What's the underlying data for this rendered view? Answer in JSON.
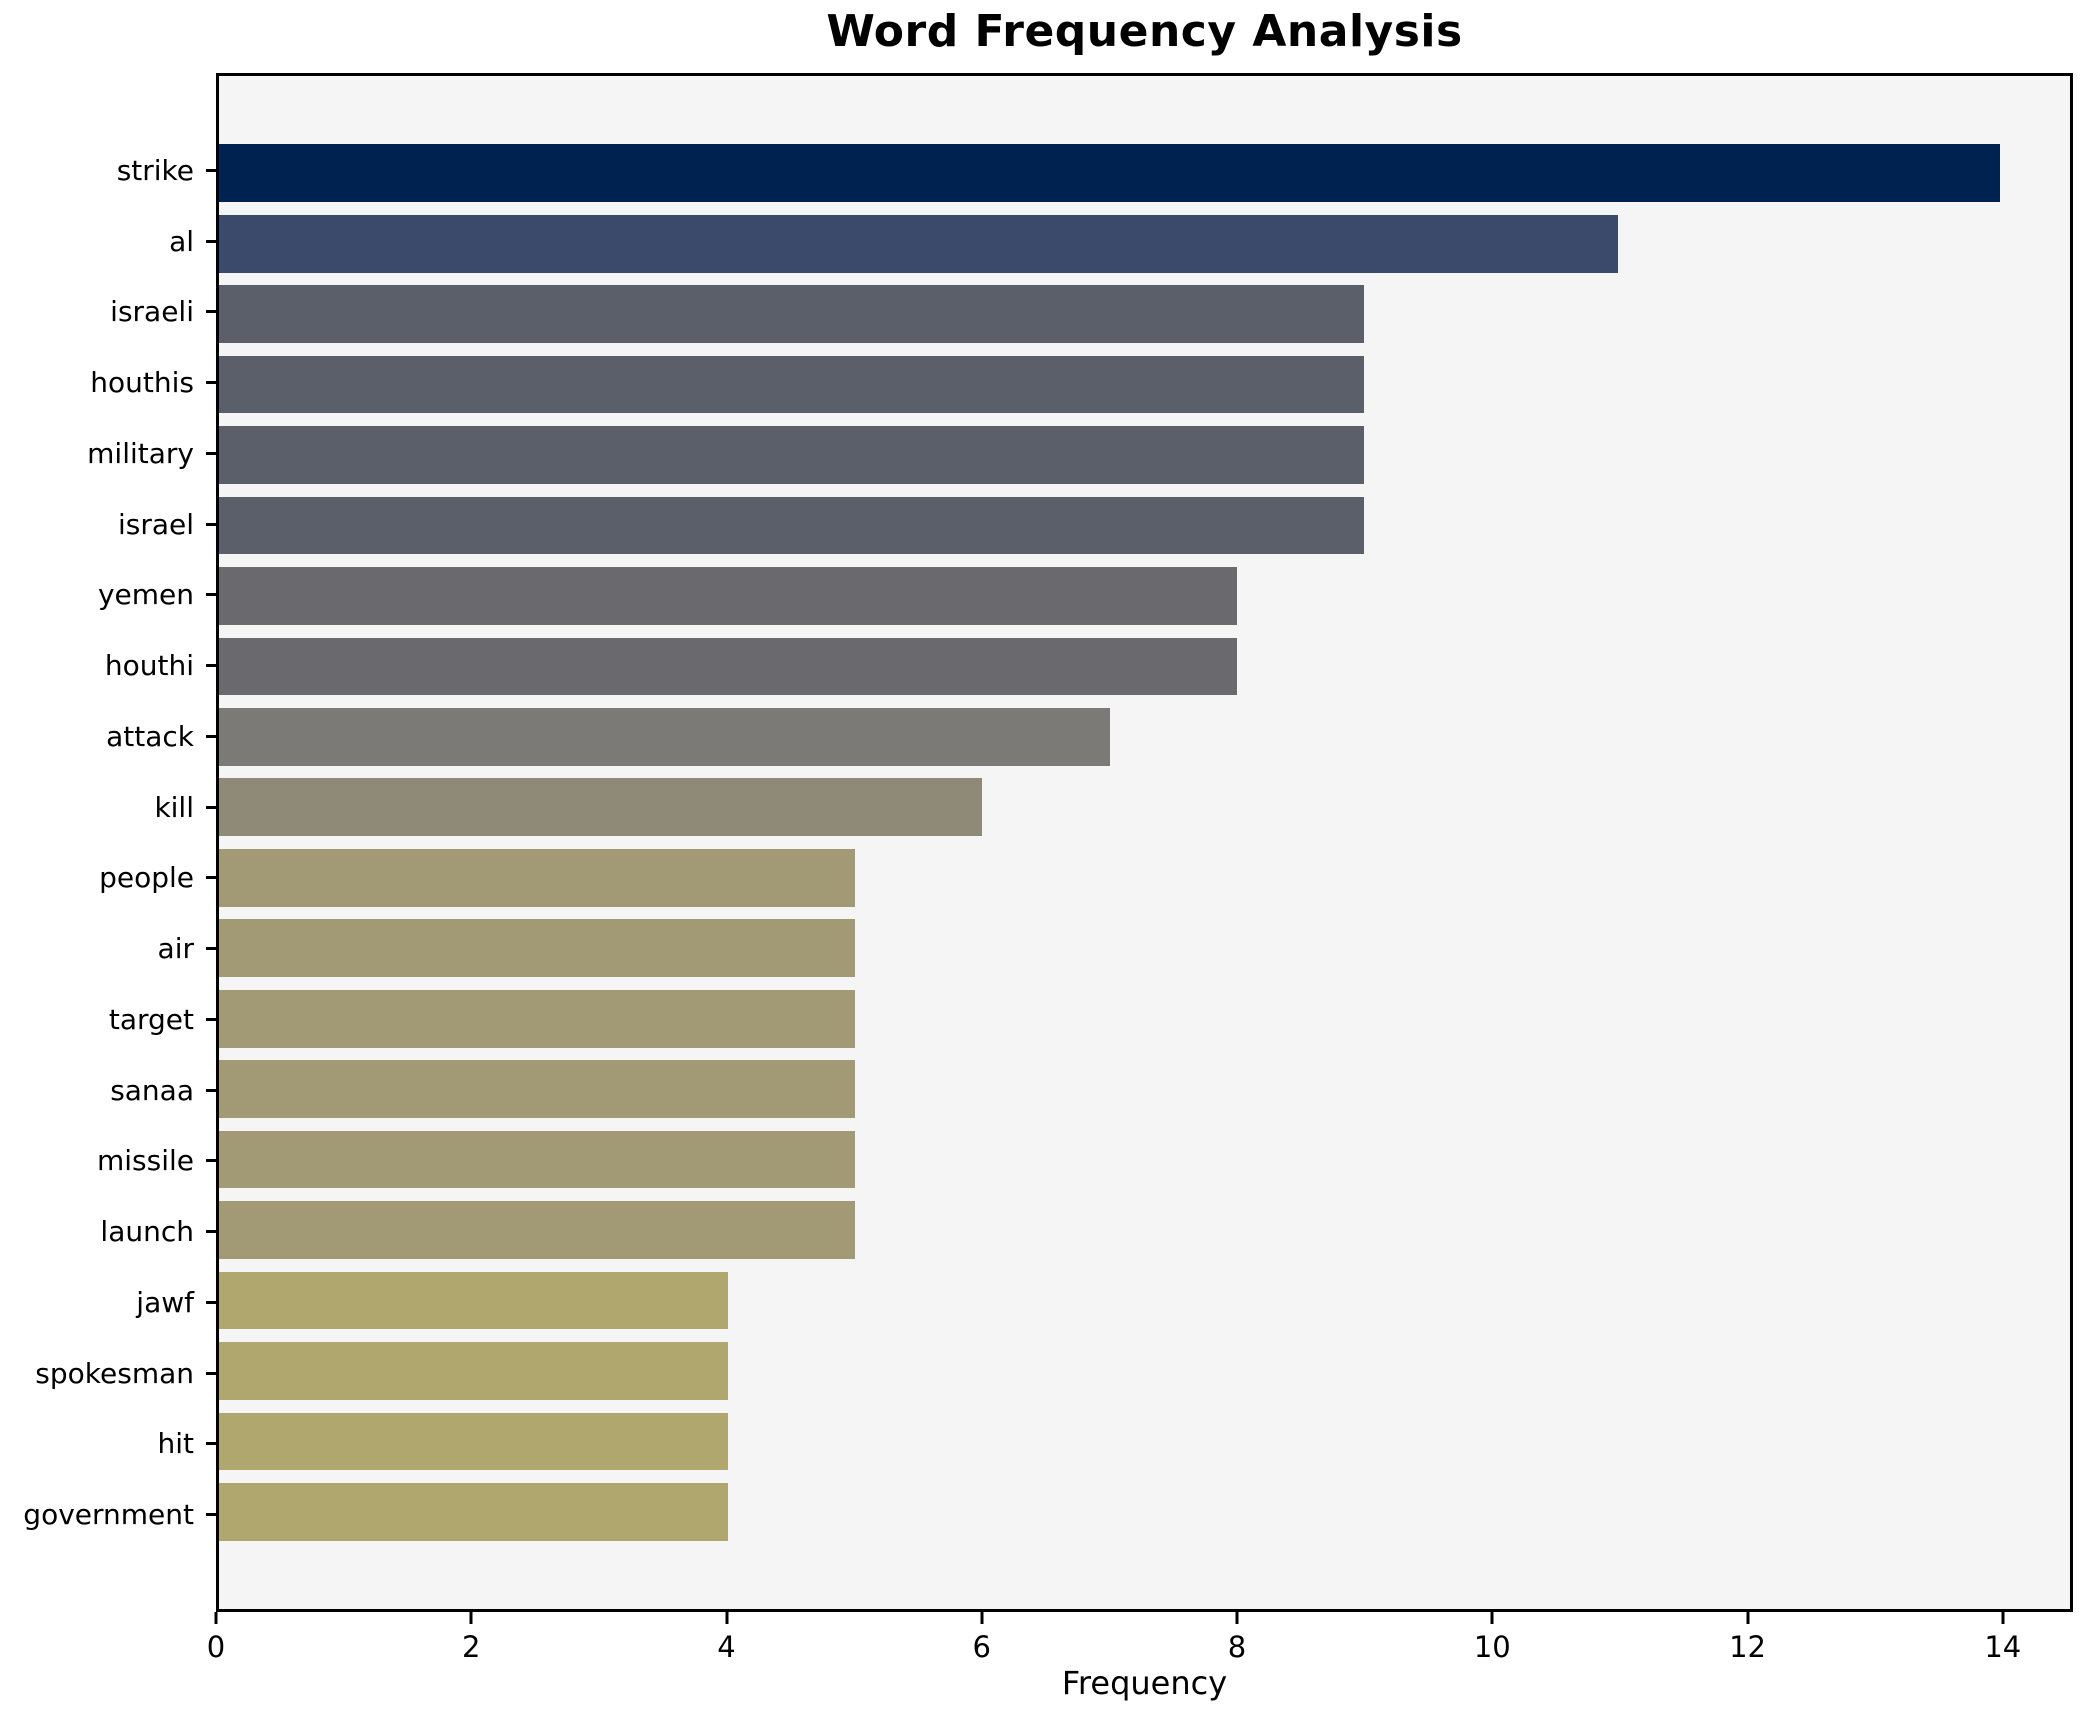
{
  "figure": {
    "background": "#ffffff",
    "plot_background": "#f6f5f5",
    "spine_color": "#000000"
  },
  "chart_data": {
    "type": "bar",
    "orientation": "horizontal",
    "title": "Word Frequency Analysis",
    "xlabel": "Frequency",
    "ylabel": "",
    "categories": [
      "strike",
      "al",
      "israeli",
      "houthis",
      "military",
      "israel",
      "yemen",
      "houthi",
      "attack",
      "kill",
      "people",
      "air",
      "target",
      "sanaa",
      "missile",
      "launch",
      "jawf",
      "spokesman",
      "hit",
      "government"
    ],
    "values": [
      14,
      11,
      9,
      9,
      9,
      9,
      8,
      8,
      7,
      6,
      5,
      5,
      5,
      5,
      5,
      5,
      4,
      4,
      4,
      4
    ],
    "bar_colors": [
      "#002250",
      "#3b4a6b",
      "#5b5f6a",
      "#5b5f6a",
      "#5b5f6a",
      "#5b5f6a",
      "#6a6a6e",
      "#6a6a6e",
      "#7b7a76",
      "#8f8977",
      "#a19a74",
      "#a19a74",
      "#a19a74",
      "#a19a74",
      "#a19a74",
      "#a19a74",
      "#b0a76e",
      "#b0a76e",
      "#b0a76e",
      "#b0a76e"
    ],
    "xticks": [
      0,
      2,
      4,
      6,
      8,
      10,
      12,
      14
    ],
    "xlim": [
      0,
      14.55
    ],
    "grid": false,
    "legend": null
  }
}
